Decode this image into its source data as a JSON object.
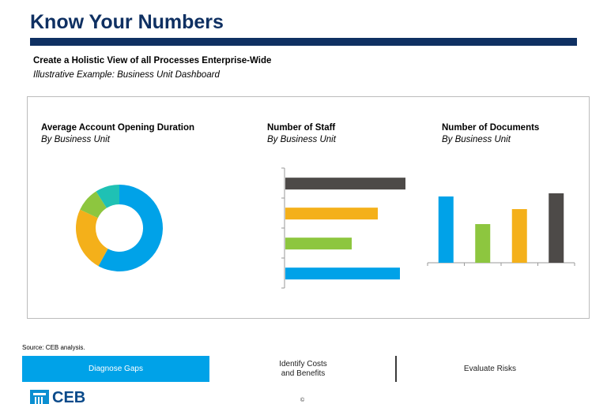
{
  "header": {
    "title": "Know Your Numbers",
    "subtitle": "Create a Holistic View of all Processes Enterprise-Wide",
    "subtitle2": "Illustrative Example: Business Unit Dashboard"
  },
  "colors": {
    "navy": "#0f3062",
    "blue": "#00a2e8",
    "orange": "#f4b01a",
    "green": "#8dc63f",
    "teal": "#1fc1b4",
    "charcoal": "#4d4a48"
  },
  "chart_data": [
    {
      "type": "pie",
      "title": "Average Account Opening Duration",
      "subtitle": "By Business Unit",
      "donut": true,
      "slices": [
        {
          "value": 58,
          "color": "#00a2e8"
        },
        {
          "value": 24,
          "color": "#f4b01a"
        },
        {
          "value": 9,
          "color": "#8dc63f"
        },
        {
          "value": 9,
          "color": "#1fc1b4"
        }
      ]
    },
    {
      "type": "bar",
      "orientation": "horizontal",
      "title": "Number of Staff",
      "subtitle": "By Business Unit",
      "values": [
        152,
        117,
        84,
        145
      ],
      "colors": [
        "#4d4a48",
        "#f4b01a",
        "#8dc63f",
        "#00a2e8"
      ],
      "xlim": [
        0,
        160
      ],
      "grid": false
    },
    {
      "type": "bar",
      "orientation": "vertical",
      "title": "Number of Documents",
      "subtitle": "By Business Unit",
      "values": [
        84,
        49,
        68,
        88
      ],
      "colors": [
        "#00a2e8",
        "#8dc63f",
        "#f4b01a",
        "#4d4a48"
      ],
      "ylim": [
        0,
        100
      ],
      "grid": false
    }
  ],
  "footer": {
    "source": "Source: CEB analysis.",
    "steps": [
      {
        "label": "Diagnose Gaps",
        "active": true
      },
      {
        "label": "Identify Costs\nand Benefits",
        "active": false
      },
      {
        "label": "Evaluate Risks",
        "active": false
      }
    ],
    "logo_text": "CEB",
    "copyright": "©"
  }
}
